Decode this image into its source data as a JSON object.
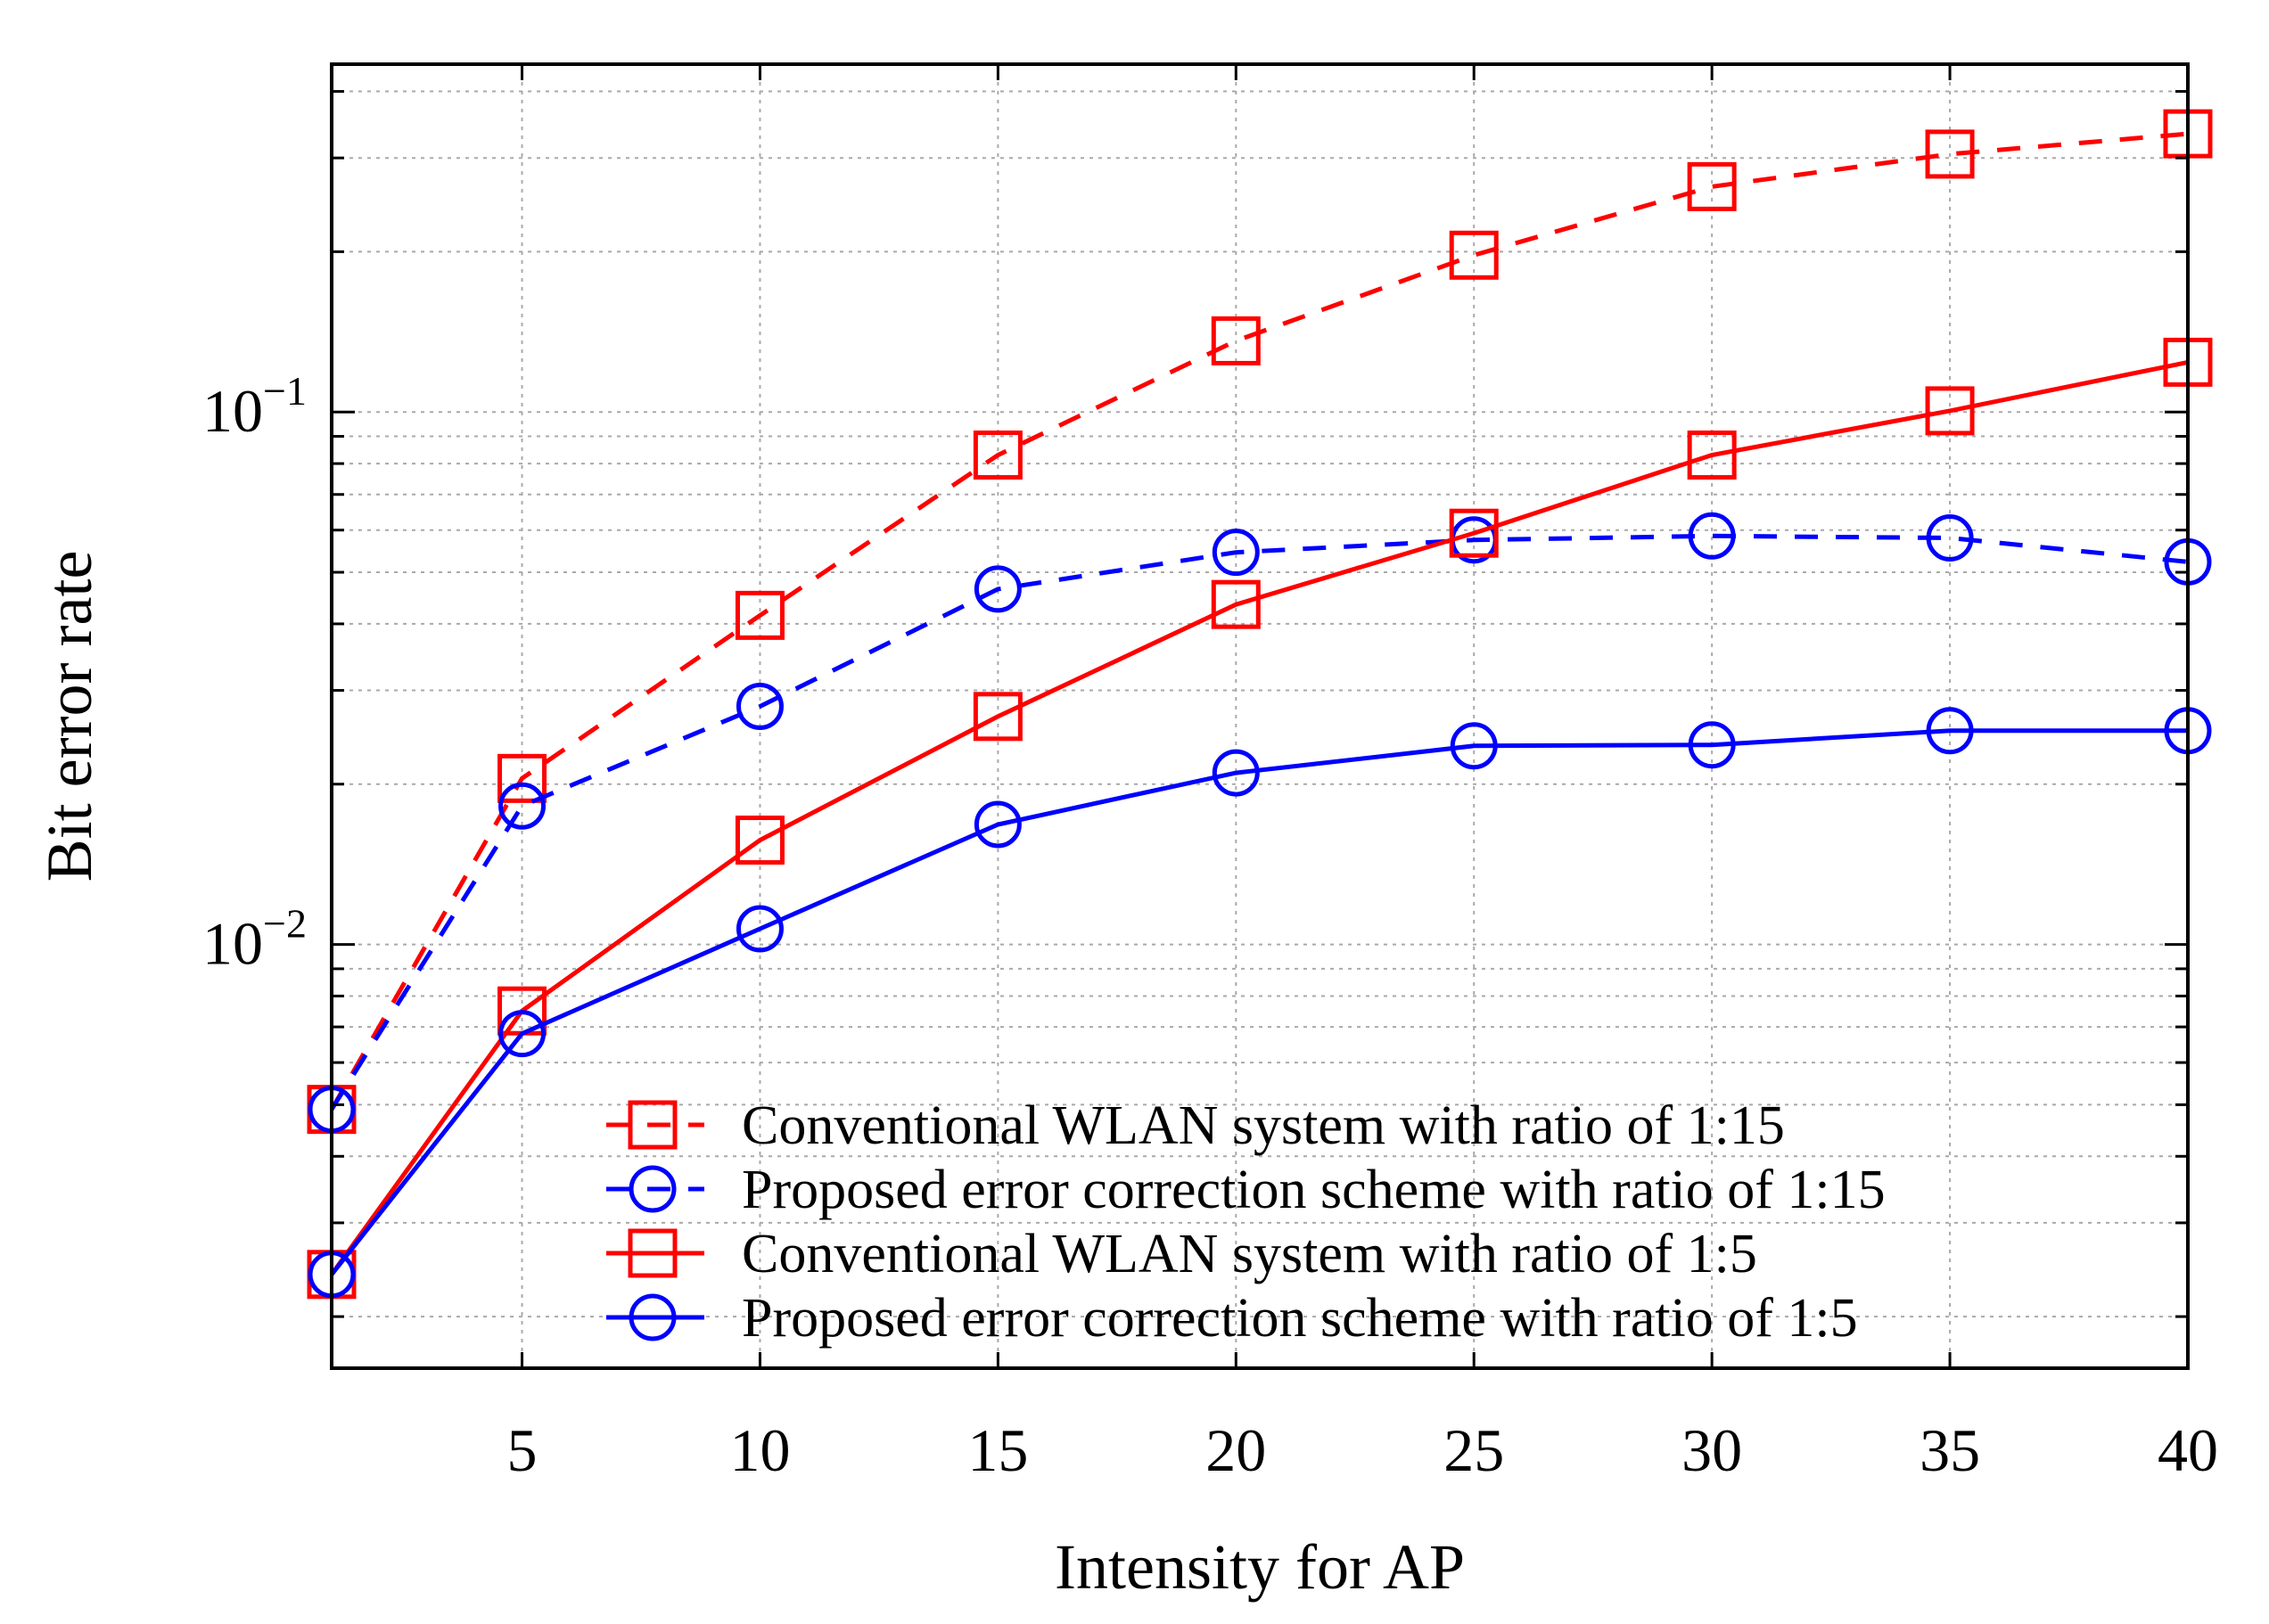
{
  "chart_data": {
    "type": "line",
    "xlabel": "Intensity for AP",
    "ylabel": "Bit error rate",
    "xlim": [
      1,
      40
    ],
    "ylim": [
      0.0016,
      0.45
    ],
    "yscale": "log",
    "x": [
      1,
      5,
      10,
      15,
      20,
      25,
      30,
      35,
      40
    ],
    "xticks": [
      5,
      10,
      15,
      20,
      25,
      30,
      35,
      40
    ],
    "yticks": [
      {
        "value": 0.01,
        "base": "10",
        "exp": "−2"
      },
      {
        "value": 0.1,
        "base": "10",
        "exp": "−1"
      }
    ],
    "grid": true,
    "legend_position": "bottom-right",
    "series": [
      {
        "name": "Conventional WLAN system with ratio of 1:15",
        "color": "#ff0000",
        "dash": "dashed",
        "marker": "square",
        "values": [
          0.0049,
          0.0205,
          0.0415,
          0.083,
          0.136,
          0.197,
          0.265,
          0.305,
          0.333
        ]
      },
      {
        "name": "Proposed error correction scheme with ratio of 1:15",
        "color": "#0000ff",
        "dash": "dashed",
        "marker": "circle",
        "values": [
          0.0049,
          0.0182,
          0.028,
          0.0465,
          0.0545,
          0.0575,
          0.0585,
          0.058,
          0.0523
        ]
      },
      {
        "name": "Conventional WLAN system with ratio of 1:5",
        "color": "#ff0000",
        "dash": "solid",
        "marker": "square",
        "values": [
          0.0024,
          0.0075,
          0.0157,
          0.0268,
          0.0435,
          0.0592,
          0.083,
          0.1005,
          0.124
        ]
      },
      {
        "name": "Proposed error correction scheme with ratio of 1:5",
        "color": "#0000ff",
        "dash": "solid",
        "marker": "circle",
        "values": [
          0.0024,
          0.0068,
          0.0107,
          0.0168,
          0.021,
          0.0236,
          0.0237,
          0.0252,
          0.0252
        ]
      }
    ]
  }
}
